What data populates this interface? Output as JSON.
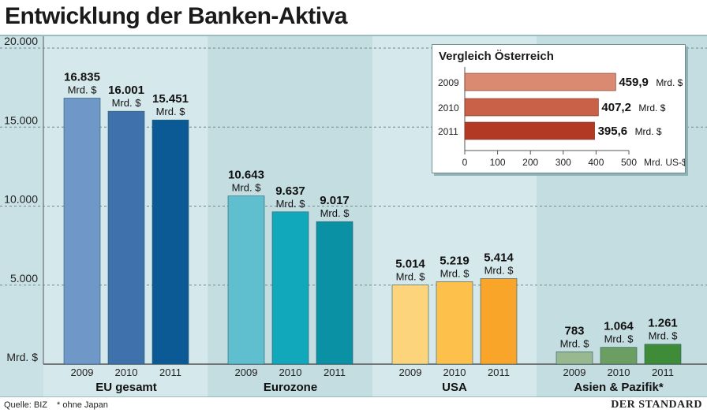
{
  "title": "Entwicklung der Banken-Aktiva",
  "footer": {
    "source": "Quelle: BIZ",
    "footnote": "* ohne Japan",
    "brand": "DER STANDARD"
  },
  "chart_data": [
    {
      "type": "bar",
      "ylabel": "Mrd. $",
      "ylim": [
        0,
        20000
      ],
      "yticks": [
        "20.000",
        "15.000",
        "10.000",
        "5.000"
      ],
      "ytick_values": [
        20000,
        15000,
        10000,
        5000
      ],
      "grid": true,
      "unit_label": "Mrd. $",
      "groups": [
        {
          "name": "EU gesamt",
          "years": [
            "2009",
            "2010",
            "2011"
          ],
          "values": [
            16835,
            16001,
            15451
          ],
          "labels": [
            "16.835",
            "16.001",
            "15.451"
          ],
          "colors": [
            "#6f98c8",
            "#3f72ad",
            "#0b5a96"
          ]
        },
        {
          "name": "Eurozone",
          "years": [
            "2009",
            "2010",
            "2011"
          ],
          "values": [
            10643,
            9637,
            9017
          ],
          "labels": [
            "10.643",
            "9.637",
            "9.017"
          ],
          "colors": [
            "#5fbfcf",
            "#12a8bc",
            "#0a92a4"
          ]
        },
        {
          "name": "USA",
          "years": [
            "2009",
            "2010",
            "2011"
          ],
          "values": [
            5014,
            5219,
            5414
          ],
          "labels": [
            "5.014",
            "5.219",
            "5.414"
          ],
          "colors": [
            "#fcd47c",
            "#fcc04b",
            "#f9a52a"
          ]
        },
        {
          "name": "Asien & Pazifik*",
          "years": [
            "2009",
            "2010",
            "2011"
          ],
          "values": [
            783,
            1064,
            1261
          ],
          "labels": [
            "783",
            "1.064",
            "1.261"
          ],
          "colors": [
            "#98b890",
            "#6c9e62",
            "#3e8c37"
          ]
        }
      ]
    },
    {
      "type": "bar",
      "orientation": "horizontal",
      "title": "Vergleich Österreich",
      "categories": [
        "2009",
        "2010",
        "2011"
      ],
      "values": [
        459.9,
        407.2,
        395.6
      ],
      "labels": [
        "459,9",
        "407,2",
        "395,6"
      ],
      "unit_label": "Mrd. $",
      "xlim": [
        0,
        500
      ],
      "xticks": [
        "0",
        "100",
        "200",
        "300",
        "400",
        "500"
      ],
      "xtick_values": [
        0,
        100,
        200,
        300,
        400,
        500
      ],
      "xlabel": "Mrd. US-$",
      "colors": [
        "#d98a70",
        "#c86148",
        "#b23a25"
      ]
    }
  ]
}
